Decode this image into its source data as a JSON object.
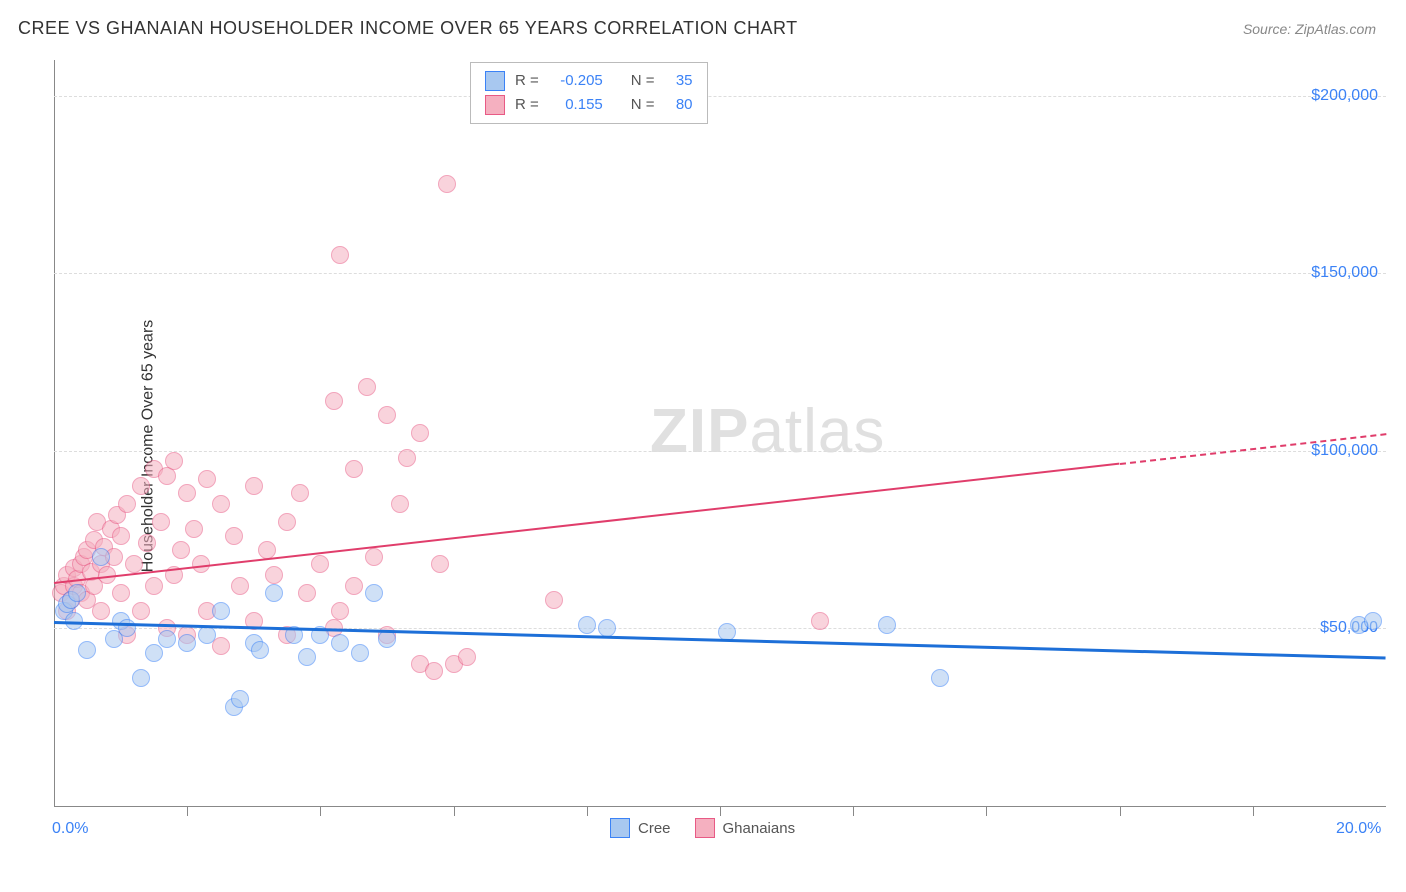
{
  "header": {
    "title": "CREE VS GHANAIAN HOUSEHOLDER INCOME OVER 65 YEARS CORRELATION CHART",
    "source": "Source: ZipAtlas.com"
  },
  "watermark": {
    "bold": "ZIP",
    "light": "atlas"
  },
  "chart": {
    "type": "scatter",
    "background_color": "#ffffff",
    "grid_color": "#dddddd",
    "axis_color": "#888888",
    "title_fontsize": 18,
    "label_fontsize": 16,
    "ylabel": "Householder Income Over 65 years",
    "xlim": [
      0,
      20
    ],
    "ylim": [
      0,
      210000
    ],
    "y_ticks": [
      50000,
      100000,
      150000,
      200000
    ],
    "y_tick_labels": [
      "$50,000",
      "$100,000",
      "$150,000",
      "$200,000"
    ],
    "x_ticks_minor": [
      2.0,
      4.0,
      6.0,
      8.0,
      10.0,
      12.0,
      14.0,
      16.0,
      18.0
    ],
    "x_tick_labels": [
      {
        "x": 0,
        "label": "0.0%"
      },
      {
        "x": 20,
        "label": "20.0%"
      }
    ],
    "point_radius": 9,
    "series": {
      "cree": {
        "label": "Cree",
        "fill": "#a8c8f0",
        "stroke": "#3b82f6",
        "fill_opacity": 0.55,
        "r_value": "-0.205",
        "n_value": "35",
        "trend": {
          "y_at_x0": 52000,
          "y_at_x20": 42000,
          "color": "#1d6fd8",
          "width": 3
        },
        "points": [
          [
            0.15,
            55000
          ],
          [
            0.2,
            57000
          ],
          [
            0.25,
            58000
          ],
          [
            0.3,
            52000
          ],
          [
            0.35,
            60000
          ],
          [
            0.5,
            44000
          ],
          [
            0.7,
            70000
          ],
          [
            0.9,
            47000
          ],
          [
            1.0,
            52000
          ],
          [
            1.1,
            50000
          ],
          [
            1.3,
            36000
          ],
          [
            1.5,
            43000
          ],
          [
            1.7,
            47000
          ],
          [
            2.0,
            46000
          ],
          [
            2.3,
            48000
          ],
          [
            2.5,
            55000
          ],
          [
            2.7,
            28000
          ],
          [
            2.8,
            30000
          ],
          [
            3.0,
            46000
          ],
          [
            3.1,
            44000
          ],
          [
            3.3,
            60000
          ],
          [
            3.6,
            48000
          ],
          [
            3.8,
            42000
          ],
          [
            4.0,
            48000
          ],
          [
            4.3,
            46000
          ],
          [
            4.6,
            43000
          ],
          [
            4.8,
            60000
          ],
          [
            5.0,
            47000
          ],
          [
            8.0,
            51000
          ],
          [
            8.3,
            50000
          ],
          [
            10.1,
            49000
          ],
          [
            12.5,
            51000
          ],
          [
            13.3,
            36000
          ],
          [
            19.6,
            51000
          ],
          [
            19.8,
            52000
          ]
        ]
      },
      "ghanaians": {
        "label": "Ghanaians",
        "fill": "#f5b0c0",
        "stroke": "#e85a85",
        "fill_opacity": 0.55,
        "r_value": "0.155",
        "n_value": "80",
        "trend": {
          "y_at_x0": 63000,
          "y_at_x20": 105000,
          "color": "#e03d6b",
          "width": 2,
          "dash_after_x": 16
        },
        "points": [
          [
            0.1,
            60000
          ],
          [
            0.15,
            62000
          ],
          [
            0.2,
            55000
          ],
          [
            0.2,
            65000
          ],
          [
            0.25,
            58000
          ],
          [
            0.3,
            67000
          ],
          [
            0.3,
            62000
          ],
          [
            0.35,
            64000
          ],
          [
            0.4,
            60000
          ],
          [
            0.4,
            68000
          ],
          [
            0.45,
            70000
          ],
          [
            0.5,
            72000
          ],
          [
            0.5,
            58000
          ],
          [
            0.55,
            66000
          ],
          [
            0.6,
            75000
          ],
          [
            0.6,
            62000
          ],
          [
            0.65,
            80000
          ],
          [
            0.7,
            68000
          ],
          [
            0.7,
            55000
          ],
          [
            0.75,
            73000
          ],
          [
            0.8,
            65000
          ],
          [
            0.85,
            78000
          ],
          [
            0.9,
            70000
          ],
          [
            0.95,
            82000
          ],
          [
            1.0,
            60000
          ],
          [
            1.0,
            76000
          ],
          [
            1.1,
            85000
          ],
          [
            1.1,
            48000
          ],
          [
            1.2,
            68000
          ],
          [
            1.3,
            90000
          ],
          [
            1.3,
            55000
          ],
          [
            1.4,
            74000
          ],
          [
            1.5,
            95000
          ],
          [
            1.5,
            62000
          ],
          [
            1.6,
            80000
          ],
          [
            1.7,
            93000
          ],
          [
            1.7,
            50000
          ],
          [
            1.8,
            97000
          ],
          [
            1.8,
            65000
          ],
          [
            1.9,
            72000
          ],
          [
            2.0,
            88000
          ],
          [
            2.0,
            48000
          ],
          [
            2.1,
            78000
          ],
          [
            2.2,
            68000
          ],
          [
            2.3,
            92000
          ],
          [
            2.3,
            55000
          ],
          [
            2.5,
            85000
          ],
          [
            2.5,
            45000
          ],
          [
            2.7,
            76000
          ],
          [
            2.8,
            62000
          ],
          [
            3.0,
            90000
          ],
          [
            3.0,
            52000
          ],
          [
            3.2,
            72000
          ],
          [
            3.3,
            65000
          ],
          [
            3.5,
            80000
          ],
          [
            3.5,
            48000
          ],
          [
            3.7,
            88000
          ],
          [
            3.8,
            60000
          ],
          [
            4.0,
            68000
          ],
          [
            4.2,
            114000
          ],
          [
            4.2,
            50000
          ],
          [
            4.3,
            55000
          ],
          [
            4.3,
            155000
          ],
          [
            4.5,
            95000
          ],
          [
            4.5,
            62000
          ],
          [
            4.7,
            118000
          ],
          [
            4.8,
            70000
          ],
          [
            5.0,
            110000
          ],
          [
            5.0,
            48000
          ],
          [
            5.2,
            85000
          ],
          [
            5.3,
            98000
          ],
          [
            5.5,
            105000
          ],
          [
            5.5,
            40000
          ],
          [
            5.7,
            38000
          ],
          [
            5.8,
            68000
          ],
          [
            5.9,
            175000
          ],
          [
            6.0,
            40000
          ],
          [
            6.2,
            42000
          ],
          [
            7.5,
            58000
          ],
          [
            11.5,
            52000
          ]
        ]
      }
    },
    "legend_top": {
      "r_label": "R =",
      "n_label": "N ="
    },
    "legend_bottom_items": [
      "cree",
      "ghanaians"
    ]
  }
}
